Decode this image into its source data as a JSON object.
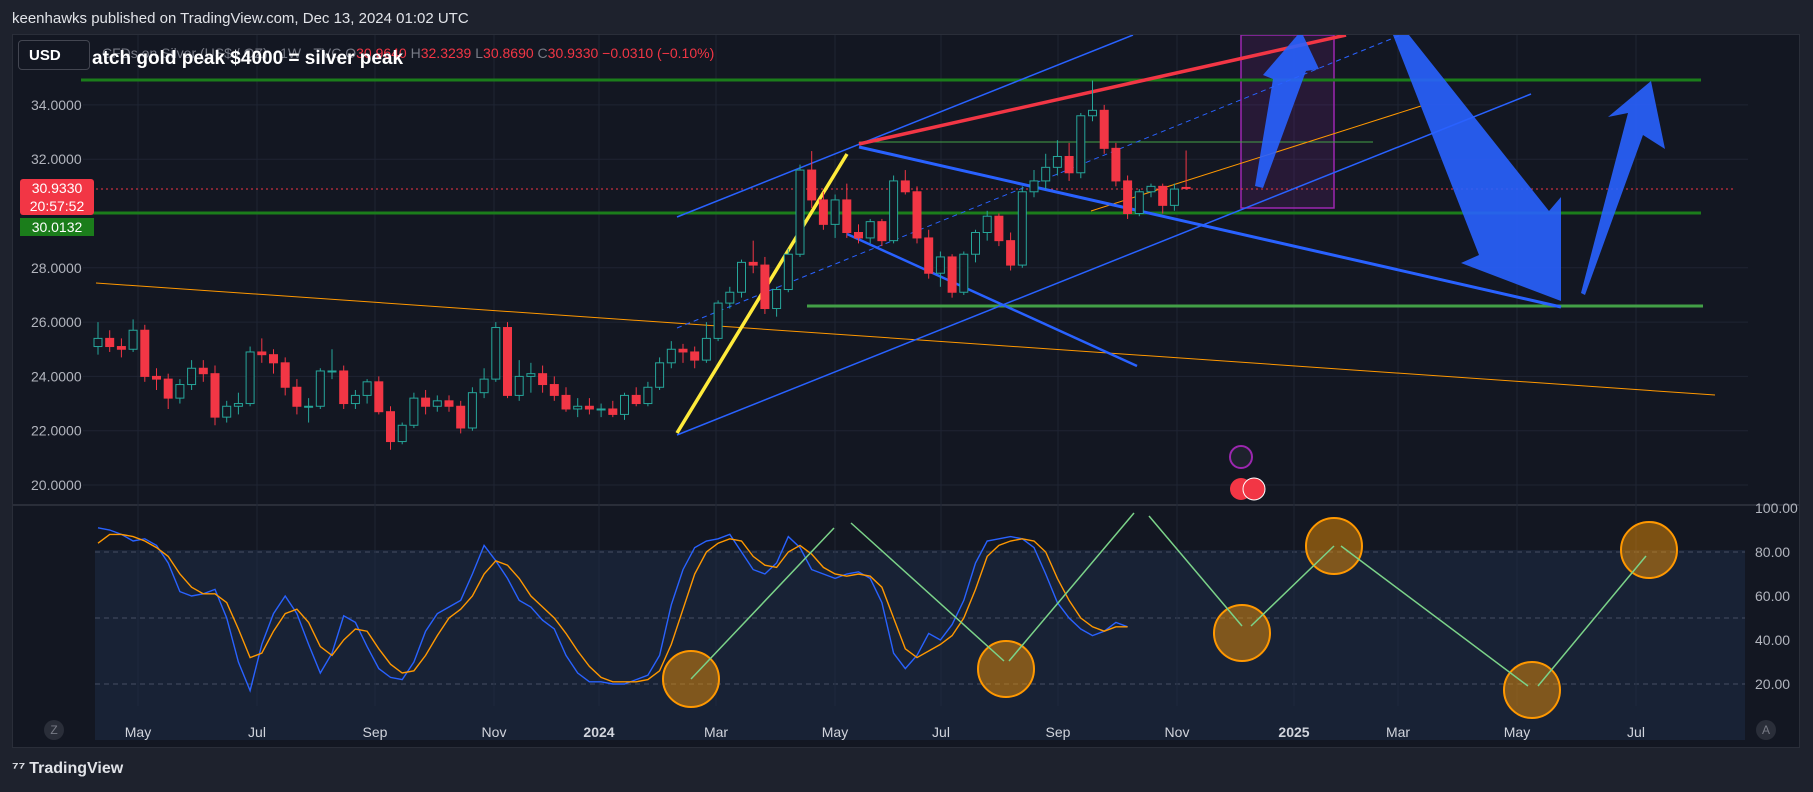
{
  "header": {
    "published": "keenhawks published on TradingView.com, Dec 13, 2024 01:02 UTC"
  },
  "currency_button": "USD",
  "legend": {
    "symbol": "CFDs on Silver (US$ / OZ) · 1W · TVC",
    "open_label": "O",
    "open": "30.9640",
    "high_label": "H",
    "high": "32.3239",
    "low_label": "L",
    "low": "30.8690",
    "close_label": "C",
    "close": "30.9330",
    "change": "−0.0310 (−0.10%)"
  },
  "idea_title": "atch gold peak $4000 = silver peak",
  "price_badge": {
    "price": "30.9330",
    "countdown": "20:57:52",
    "level": "30.0132"
  },
  "colors": {
    "up": "#26a69a",
    "down": "#f23645",
    "blue": "#2962ff",
    "green": "#1b7d1b",
    "orange": "#ff9800",
    "yellow": "#ffeb3b",
    "red": "#f23645",
    "purple": "#9c27b0",
    "rsi_blue": "#2962ff",
    "rsi_orange": "#ff9800"
  },
  "footer": {
    "brand": "TradingView"
  },
  "corner_left": "Z",
  "corner_right": "A",
  "chart_data": {
    "type": "candlestick",
    "price_axis": {
      "ticks": [
        "34.0000",
        "32.0000",
        "28.0000",
        "26.0000",
        "24.0000",
        "22.0000",
        "20.0000"
      ]
    },
    "osc_axis": {
      "ticks": [
        "100.00",
        "80.00",
        "60.00",
        "40.00",
        "20.00"
      ],
      "ylim": [
        0,
        100
      ]
    },
    "x_ticks": [
      "May",
      "Jul",
      "Sep",
      "Nov",
      "2024",
      "Mar",
      "May",
      "Jul",
      "Sep",
      "Nov",
      "2025",
      "Mar",
      "May",
      "Jul"
    ],
    "candles": [
      {
        "o": 25.1,
        "h": 26.0,
        "l": 24.8,
        "c": 25.4
      },
      {
        "o": 25.4,
        "h": 25.7,
        "l": 24.9,
        "c": 25.1
      },
      {
        "o": 25.1,
        "h": 25.4,
        "l": 24.7,
        "c": 25.0
      },
      {
        "o": 25.0,
        "h": 26.1,
        "l": 24.9,
        "c": 25.7
      },
      {
        "o": 25.7,
        "h": 25.9,
        "l": 23.8,
        "c": 24.0
      },
      {
        "o": 24.0,
        "h": 24.3,
        "l": 23.5,
        "c": 23.9
      },
      {
        "o": 23.9,
        "h": 24.1,
        "l": 22.8,
        "c": 23.2
      },
      {
        "o": 23.2,
        "h": 23.9,
        "l": 23.0,
        "c": 23.7
      },
      {
        "o": 23.7,
        "h": 24.6,
        "l": 23.5,
        "c": 24.3
      },
      {
        "o": 24.3,
        "h": 24.6,
        "l": 23.8,
        "c": 24.1
      },
      {
        "o": 24.1,
        "h": 24.4,
        "l": 22.2,
        "c": 22.5
      },
      {
        "o": 22.5,
        "h": 23.1,
        "l": 22.3,
        "c": 22.9
      },
      {
        "o": 22.9,
        "h": 23.4,
        "l": 22.6,
        "c": 23.0
      },
      {
        "o": 23.0,
        "h": 25.1,
        "l": 22.9,
        "c": 24.9
      },
      {
        "o": 24.9,
        "h": 25.4,
        "l": 24.5,
        "c": 24.8
      },
      {
        "o": 24.8,
        "h": 25.0,
        "l": 24.1,
        "c": 24.5
      },
      {
        "o": 24.5,
        "h": 24.7,
        "l": 23.3,
        "c": 23.6
      },
      {
        "o": 23.6,
        "h": 23.9,
        "l": 22.6,
        "c": 22.9
      },
      {
        "o": 22.9,
        "h": 23.2,
        "l": 22.3,
        "c": 22.9
      },
      {
        "o": 22.9,
        "h": 24.3,
        "l": 22.8,
        "c": 24.2
      },
      {
        "o": 24.2,
        "h": 25.0,
        "l": 23.9,
        "c": 24.2
      },
      {
        "o": 24.2,
        "h": 24.4,
        "l": 22.8,
        "c": 23.0
      },
      {
        "o": 23.0,
        "h": 23.5,
        "l": 22.8,
        "c": 23.3
      },
      {
        "o": 23.3,
        "h": 23.9,
        "l": 23.0,
        "c": 23.8
      },
      {
        "o": 23.8,
        "h": 24.0,
        "l": 22.6,
        "c": 22.7
      },
      {
        "o": 22.7,
        "h": 22.9,
        "l": 21.3,
        "c": 21.6
      },
      {
        "o": 21.6,
        "h": 22.3,
        "l": 21.5,
        "c": 22.2
      },
      {
        "o": 22.2,
        "h": 23.4,
        "l": 22.1,
        "c": 23.2
      },
      {
        "o": 23.2,
        "h": 23.5,
        "l": 22.6,
        "c": 22.9
      },
      {
        "o": 22.9,
        "h": 23.3,
        "l": 22.7,
        "c": 23.1
      },
      {
        "o": 23.1,
        "h": 23.3,
        "l": 22.7,
        "c": 22.9
      },
      {
        "o": 22.9,
        "h": 23.1,
        "l": 21.9,
        "c": 22.1
      },
      {
        "o": 22.1,
        "h": 23.6,
        "l": 22.0,
        "c": 23.4
      },
      {
        "o": 23.4,
        "h": 24.3,
        "l": 23.2,
        "c": 23.9
      },
      {
        "o": 23.9,
        "h": 26.0,
        "l": 23.8,
        "c": 25.8
      },
      {
        "o": 25.8,
        "h": 26.0,
        "l": 23.2,
        "c": 23.3
      },
      {
        "o": 23.3,
        "h": 24.6,
        "l": 23.1,
        "c": 24.0
      },
      {
        "o": 24.0,
        "h": 24.5,
        "l": 23.4,
        "c": 24.1
      },
      {
        "o": 24.1,
        "h": 24.4,
        "l": 23.4,
        "c": 23.7
      },
      {
        "o": 23.7,
        "h": 24.0,
        "l": 23.1,
        "c": 23.3
      },
      {
        "o": 23.3,
        "h": 23.6,
        "l": 22.7,
        "c": 22.8
      },
      {
        "o": 22.8,
        "h": 23.2,
        "l": 22.5,
        "c": 22.9
      },
      {
        "o": 22.9,
        "h": 23.2,
        "l": 22.6,
        "c": 22.8
      },
      {
        "o": 22.8,
        "h": 23.0,
        "l": 22.5,
        "c": 22.8
      },
      {
        "o": 22.8,
        "h": 23.1,
        "l": 22.5,
        "c": 22.6
      },
      {
        "o": 22.6,
        "h": 23.4,
        "l": 22.4,
        "c": 23.3
      },
      {
        "o": 23.3,
        "h": 23.6,
        "l": 22.9,
        "c": 23.0
      },
      {
        "o": 23.0,
        "h": 23.8,
        "l": 22.9,
        "c": 23.6
      },
      {
        "o": 23.6,
        "h": 24.7,
        "l": 23.5,
        "c": 24.5
      },
      {
        "o": 24.5,
        "h": 25.3,
        "l": 24.3,
        "c": 25.0
      },
      {
        "o": 25.0,
        "h": 25.2,
        "l": 24.5,
        "c": 24.9
      },
      {
        "o": 24.9,
        "h": 25.1,
        "l": 24.3,
        "c": 24.6
      },
      {
        "o": 24.6,
        "h": 26.0,
        "l": 24.5,
        "c": 25.4
      },
      {
        "o": 25.4,
        "h": 26.8,
        "l": 25.3,
        "c": 26.7
      },
      {
        "o": 26.7,
        "h": 27.3,
        "l": 26.5,
        "c": 27.1
      },
      {
        "o": 27.1,
        "h": 28.3,
        "l": 26.9,
        "c": 28.2
      },
      {
        "o": 28.2,
        "h": 29.0,
        "l": 27.8,
        "c": 28.1
      },
      {
        "o": 28.1,
        "h": 28.4,
        "l": 26.3,
        "c": 26.5
      },
      {
        "o": 26.5,
        "h": 27.3,
        "l": 26.2,
        "c": 27.2
      },
      {
        "o": 27.2,
        "h": 28.7,
        "l": 27.1,
        "c": 28.5
      },
      {
        "o": 28.5,
        "h": 31.8,
        "l": 28.4,
        "c": 31.6
      },
      {
        "o": 31.6,
        "h": 32.3,
        "l": 30.2,
        "c": 30.5
      },
      {
        "o": 30.5,
        "h": 30.8,
        "l": 29.4,
        "c": 29.6
      },
      {
        "o": 29.6,
        "h": 30.7,
        "l": 29.1,
        "c": 30.5
      },
      {
        "o": 30.5,
        "h": 31.1,
        "l": 29.1,
        "c": 29.3
      },
      {
        "o": 29.3,
        "h": 29.6,
        "l": 28.9,
        "c": 29.1
      },
      {
        "o": 29.1,
        "h": 29.8,
        "l": 28.9,
        "c": 29.7
      },
      {
        "o": 29.7,
        "h": 29.8,
        "l": 28.8,
        "c": 29.0
      },
      {
        "o": 29.0,
        "h": 31.4,
        "l": 28.9,
        "c": 31.2
      },
      {
        "o": 31.2,
        "h": 31.6,
        "l": 30.7,
        "c": 30.8
      },
      {
        "o": 30.8,
        "h": 31.0,
        "l": 28.9,
        "c": 29.1
      },
      {
        "o": 29.1,
        "h": 29.4,
        "l": 27.6,
        "c": 27.8
      },
      {
        "o": 27.8,
        "h": 28.6,
        "l": 27.3,
        "c": 28.4
      },
      {
        "o": 28.4,
        "h": 28.5,
        "l": 26.9,
        "c": 27.1
      },
      {
        "o": 27.1,
        "h": 28.6,
        "l": 27.0,
        "c": 28.5
      },
      {
        "o": 28.5,
        "h": 29.4,
        "l": 28.2,
        "c": 29.3
      },
      {
        "o": 29.3,
        "h": 30.1,
        "l": 29.0,
        "c": 29.9
      },
      {
        "o": 29.9,
        "h": 30.0,
        "l": 28.8,
        "c": 29.0
      },
      {
        "o": 29.0,
        "h": 29.3,
        "l": 27.9,
        "c": 28.1
      },
      {
        "o": 28.1,
        "h": 31.0,
        "l": 28.0,
        "c": 30.8
      },
      {
        "o": 30.8,
        "h": 31.6,
        "l": 30.6,
        "c": 31.2
      },
      {
        "o": 31.2,
        "h": 32.2,
        "l": 30.9,
        "c": 31.7
      },
      {
        "o": 31.7,
        "h": 32.7,
        "l": 31.4,
        "c": 32.1
      },
      {
        "o": 32.1,
        "h": 32.6,
        "l": 31.2,
        "c": 31.5
      },
      {
        "o": 31.5,
        "h": 33.7,
        "l": 31.3,
        "c": 33.6
      },
      {
        "o": 33.6,
        "h": 34.9,
        "l": 33.4,
        "c": 33.8
      },
      {
        "o": 33.8,
        "h": 34.0,
        "l": 32.2,
        "c": 32.4
      },
      {
        "o": 32.4,
        "h": 32.6,
        "l": 31.0,
        "c": 31.2
      },
      {
        "o": 31.2,
        "h": 31.4,
        "l": 29.8,
        "c": 30.0
      },
      {
        "o": 30.0,
        "h": 30.9,
        "l": 29.9,
        "c": 30.8
      },
      {
        "o": 30.8,
        "h": 31.1,
        "l": 30.6,
        "c": 31.0
      },
      {
        "o": 31.0,
        "h": 31.1,
        "l": 30.0,
        "c": 30.3
      },
      {
        "o": 30.3,
        "h": 31.1,
        "l": 30.1,
        "c": 30.9
      },
      {
        "o": 30.96,
        "h": 32.32,
        "l": 30.87,
        "c": 30.93
      }
    ],
    "stoch_k": [
      91,
      90,
      88,
      85,
      86,
      83,
      75,
      62,
      60,
      61,
      63,
      50,
      30,
      17,
      38,
      52,
      60,
      52,
      38,
      25,
      34,
      51,
      48,
      37,
      27,
      23,
      22,
      30,
      44,
      52,
      55,
      58,
      70,
      83,
      76,
      68,
      58,
      55,
      49,
      45,
      33,
      25,
      21,
      21,
      20,
      20,
      22,
      24,
      33,
      56,
      72,
      82,
      85,
      86,
      88,
      80,
      72,
      70,
      75,
      87,
      82,
      72,
      70,
      68,
      70,
      71,
      68,
      57,
      34,
      27,
      33,
      43,
      40,
      47,
      58,
      75,
      85,
      86,
      87,
      86,
      82,
      70,
      57,
      50,
      45,
      42,
      44,
      48,
      46
    ],
    "stoch_d": [
      84,
      88,
      88,
      87,
      85,
      82,
      78,
      70,
      64,
      61,
      61,
      57,
      45,
      32,
      34,
      44,
      52,
      54,
      48,
      37,
      33,
      40,
      45,
      44,
      36,
      29,
      25,
      26,
      33,
      42,
      50,
      54,
      60,
      70,
      76,
      74,
      68,
      60,
      55,
      50,
      43,
      35,
      28,
      23,
      21,
      21,
      21,
      22,
      26,
      38,
      54,
      70,
      80,
      84,
      86,
      85,
      78,
      74,
      73,
      80,
      83,
      79,
      73,
      70,
      69,
      70,
      69,
      64,
      50,
      36,
      32,
      35,
      38,
      42,
      50,
      63,
      78,
      83,
      85,
      86,
      85,
      80,
      68,
      58,
      50,
      46,
      44,
      46,
      46
    ]
  }
}
